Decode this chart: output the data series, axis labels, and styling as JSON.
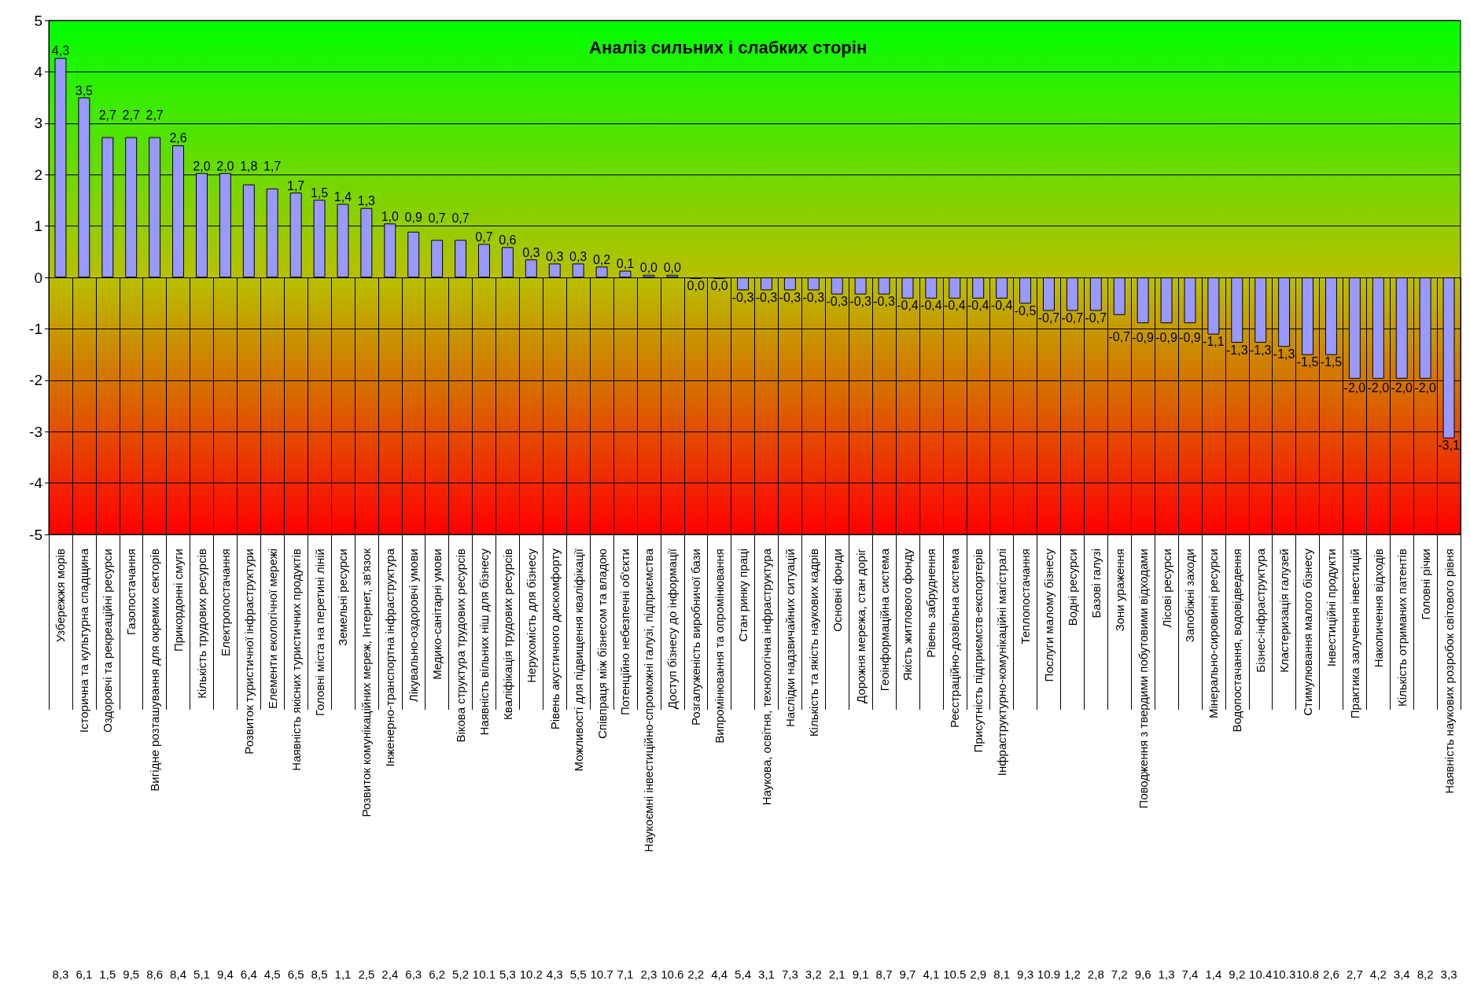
{
  "chart_data": {
    "type": "bar",
    "title": "Аналіз сильних і слабких сторін",
    "categories": [
      "Узбережжя морів",
      "Історична та культурна спадщина",
      "Оздоровчі та рекреаційні ресурси",
      "Газопостачання",
      "Вигідне розташування для окремих секторів",
      "Прикордонні смуги",
      "Кількість трудових ресурсів",
      "Електропостачання",
      "Розвиток туристичної інфраструктури",
      "Елементи екологічної мережі",
      "Наявність якісних туристичних продуктів",
      "Головні міста на перетині ліній",
      "Земельні ресурси",
      "Розвиток комунікаційних мереж, Інтернет, зв'язок",
      "Інженерно-транспортна інфраструктура",
      "Лікувально-оздоровчі умови",
      "Медико-санітарні умови",
      "Вікова структура трудових ресурсів",
      "Наявність вільних ніш для бізнесу",
      "Кваліфікація трудових ресурсів",
      "Нерухомість для бізнесу",
      "Рівень акустичного дискомфорту",
      "Можливості для підвищення кваліфікації",
      "Співпраця між бізнесом та владою",
      "Потенційно небезпечні об'єкти",
      "Наукоємні інвестиційно-спроможні галузі, підприємства",
      "Доступ бізнесу до інформації",
      "Розгалуженість виробничої бази",
      "Випромінювання та опромінювання",
      "Стан ринку праці",
      "Наукова, освітня, технологічна інфраструктура",
      "Наслідки надзвичайних ситуацій",
      "Кількість та якість наукових кадрів",
      "Основні фонди",
      "Дорожня мережа, стан доріг",
      "Геоінформаційна система",
      "Якість житлового фонду",
      "Рівень забруднення",
      "Реєстраційно-дозвільна система",
      "Присутність підприємств-експортерів",
      "Інфраструктурно-комунікаційні магістралі",
      "Теплопостачання",
      "Послуги малому бізнесу",
      "Водні ресурси",
      "Базові галузі",
      "Зони ураження",
      "Поводження з твердими побутовими відходами",
      "Лісові ресурси",
      "Запобіжні заходи",
      "Мінерально-сировинні ресурси",
      "Водопостачання, водовідведення",
      "Бізнес-інфраструктура",
      "Кластеризація галузей",
      "Стимулювання малого бізнесу",
      "Інвестиційні продукти",
      "Практика залучення інвестицій",
      "Накопичення відходів",
      "Кількість отриманих патентів",
      "Головні річки",
      "Наявність наукових розробок світового рівня"
    ],
    "values": [
      4.27,
      3.5,
      2.73,
      2.73,
      2.73,
      2.57,
      2.03,
      2.03,
      1.81,
      1.73,
      1.65,
      1.51,
      1.43,
      1.35,
      1.05,
      0.89,
      0.73,
      0.73,
      0.65,
      0.59,
      0.35,
      0.27,
      0.27,
      0.21,
      0.13,
      0.05,
      0.05,
      -0.03,
      -0.03,
      -0.25,
      -0.25,
      -0.25,
      -0.25,
      -0.33,
      -0.33,
      -0.33,
      -0.41,
      -0.41,
      -0.41,
      -0.41,
      -0.41,
      -0.51,
      -0.65,
      -0.65,
      -0.65,
      -0.73,
      -0.89,
      -0.89,
      -0.89,
      -1.11,
      -1.27,
      -1.27,
      -1.35,
      -1.51,
      -1.51,
      -1.97,
      -1.97,
      -1.97,
      -1.97,
      -3.13
    ],
    "value_labels": [
      "4,3",
      "3,5",
      "2,7",
      "2,7",
      "2,7",
      "2,6",
      "2,0",
      "2,0",
      "1,8",
      "1,7",
      "1,7",
      "1,5",
      "1,4",
      "1,3",
      "1,0",
      "0,9",
      "0,7",
      "0,7",
      "0,7",
      "0,6",
      "0,3",
      "0,3",
      "0,3",
      "0,2",
      "0,1",
      "0,0",
      "0,0",
      "0,0",
      "0,0",
      "-0,3",
      "-0,3",
      "-0,3",
      "-0,3",
      "-0,3",
      "-0,3",
      "-0,3",
      "-0,4",
      "-0,4",
      "-0,4",
      "-0,4",
      "-0,4",
      "-0,5",
      "-0,7",
      "-0,7",
      "-0,7",
      "-0,7",
      "-0,9",
      "-0,9",
      "-0,9",
      "-1,1",
      "-1,3",
      "-1,3",
      "-1,3",
      "-1,5",
      "-1,5",
      "-2,0",
      "-2,0",
      "-2,0",
      "-2,0",
      "-3,1"
    ],
    "color": "#9999ff",
    "ylim": [
      -5,
      5
    ],
    "yticks": [
      -5,
      -4,
      -3,
      -2,
      -1,
      0,
      1,
      2,
      3,
      4,
      5
    ],
    "grid": "y",
    "annotations": [
      "8,3",
      "6,1",
      "1,5",
      "9,5",
      "8,6",
      "8,4",
      "5,1",
      "9,4",
      "6,4",
      "4,5",
      "6,5",
      "8,5",
      "1,1",
      "2,5",
      "2,4",
      "6,3",
      "6,2",
      "5,2",
      "10.1",
      "5,3",
      "10.2",
      "4,3",
      "5,5",
      "10.7",
      "7,1",
      "2,3",
      "10.6",
      "2,2",
      "4,4",
      "5,4",
      "3,1",
      "7,3",
      "3,2",
      "2,1",
      "9,1",
      "8,7",
      "9,7",
      "4,1",
      "10.5",
      "2,9",
      "8,1",
      "9,3",
      "10.9",
      "1,2",
      "2,8",
      "7,2",
      "9,6",
      "1,3",
      "7,4",
      "1,4",
      "9,2",
      "10.4",
      "10.3",
      "10.8",
      "2,6",
      "2,7",
      "4,2",
      "3,4",
      "8,2",
      "3,3"
    ]
  }
}
